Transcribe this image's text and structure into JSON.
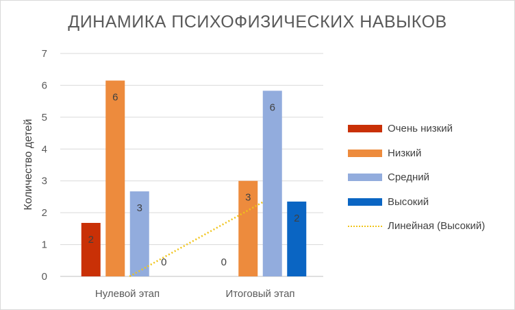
{
  "chart_data": {
    "type": "bar",
    "title": "ДИНАМИКА ПСИХОФИЗИЧЕСКИХ  НАВЫКОВ",
    "ylabel": "Количество детей",
    "xlabel": "",
    "ylim": [
      0,
      7
    ],
    "yticks": [
      "0",
      "1",
      "2",
      "3",
      "4",
      "5",
      "6",
      "7"
    ],
    "grid": true,
    "legend_position": "right",
    "categories": [
      "Нулевой этап",
      "Итоговый этап"
    ],
    "series": [
      {
        "name": "Очень низкий",
        "color": "#c93006",
        "values": [
          1.68,
          0
        ],
        "labels": [
          "2",
          ""
        ]
      },
      {
        "name": "Низкий",
        "color": "#ed8b3d",
        "values": [
          6.15,
          3.0
        ],
        "labels": [
          "6",
          "3"
        ]
      },
      {
        "name": "Средний",
        "color": "#92acdd",
        "values": [
          2.67,
          5.83
        ],
        "labels": [
          "3",
          "6"
        ]
      },
      {
        "name": "Высокий",
        "color": "#0a65c3",
        "values": [
          0,
          2.35
        ],
        "labels": [
          "0",
          "2"
        ]
      }
    ],
    "extra_labels": [
      {
        "series": 0,
        "category": 1,
        "text": "0"
      }
    ],
    "trendline": {
      "name": "Линейная (Высокий)",
      "color": "#f0c419",
      "style": "dotted",
      "values": [
        0,
        2.35
      ]
    }
  }
}
